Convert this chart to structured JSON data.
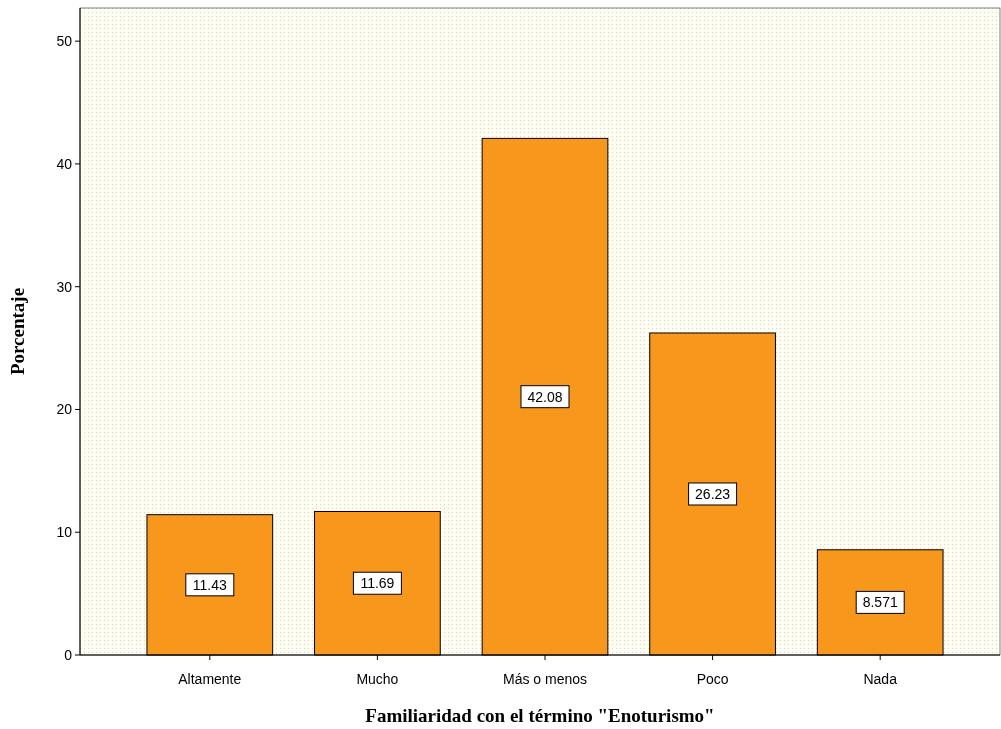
{
  "chart_data": {
    "type": "bar",
    "xlabel": "Familiaridad con el término \"Enoturismo\"",
    "ylabel": "Porcentaje",
    "categories": [
      "Altamente",
      "Mucho",
      "Más o menos",
      "Poco",
      "Nada"
    ],
    "values": [
      11.43,
      11.69,
      42.08,
      26.23,
      8.571
    ],
    "color": "#f7981d",
    "ylim": [
      0,
      52.7
    ],
    "yticks": [
      0,
      10,
      20,
      30,
      40,
      50
    ],
    "grid": false,
    "data_labels": true
  }
}
